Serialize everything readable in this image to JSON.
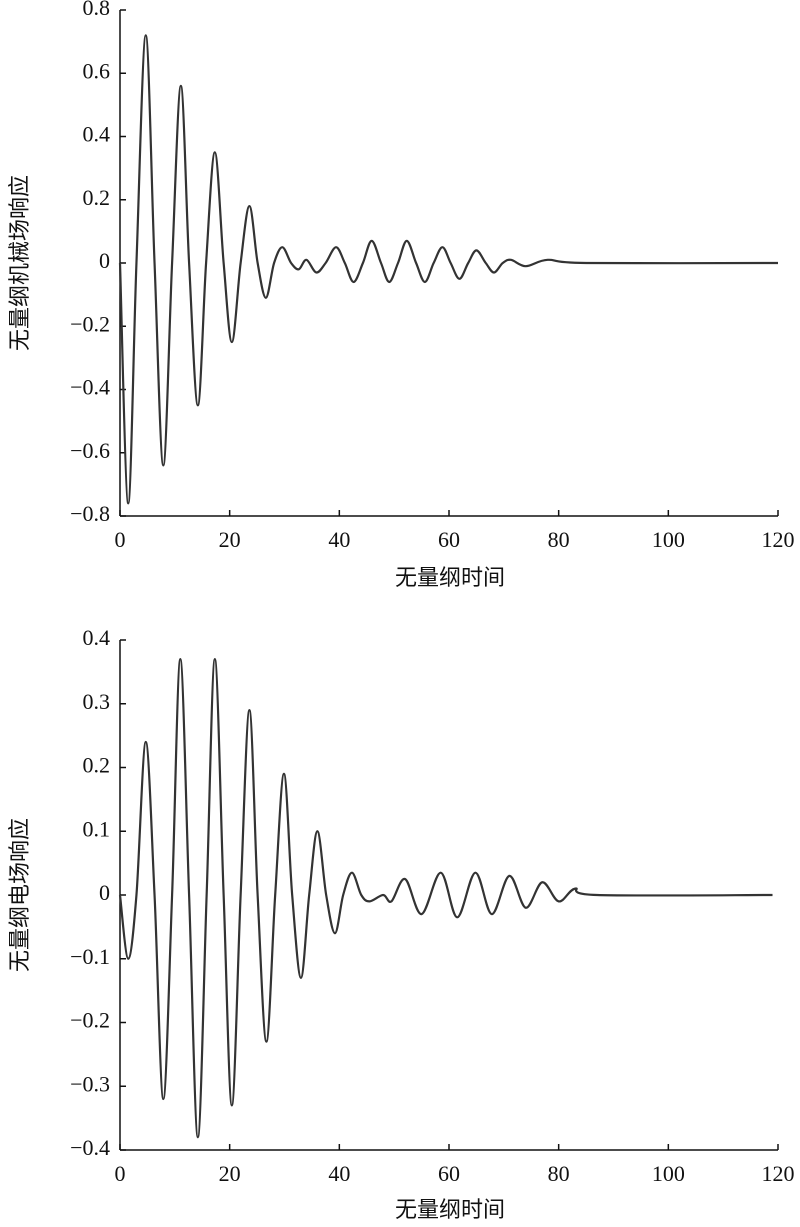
{
  "chart_data": [
    {
      "type": "line",
      "xlabel": "无量纲时间",
      "ylabel": "无量纲机械场响应",
      "color": "#333333",
      "xlim": [
        0,
        120
      ],
      "ylim": [
        -0.8,
        0.8
      ],
      "xticks": [
        0,
        20,
        40,
        60,
        80,
        100,
        120
      ],
      "yticks": [
        {
          "value": -0.8,
          "label": "−0.8"
        },
        {
          "value": -0.6,
          "label": "−0.6"
        },
        {
          "value": -0.4,
          "label": "−0.4"
        },
        {
          "value": -0.2,
          "label": "−0.2"
        },
        0,
        0.2,
        0.4,
        0.6,
        0.8
      ],
      "x": [
        0,
        1.5,
        3,
        4.7,
        6.3,
        7.9,
        9.5,
        11.1,
        12.6,
        14.2,
        15.7,
        17.3,
        18.9,
        20.4,
        22,
        23.6,
        25.1,
        26.6,
        28.1,
        29.6,
        31.2,
        32.6,
        34,
        35.8,
        37.5,
        39.4,
        41,
        42.6,
        44.3,
        45.9,
        47.6,
        49.1,
        50.7,
        52.3,
        54,
        55.6,
        57.2,
        58.8,
        60.3,
        61.9,
        63.5,
        65,
        66.7,
        68.2,
        69.8,
        71.3,
        74,
        78,
        85,
        120
      ],
      "values": [
        0,
        -0.76,
        0,
        0.72,
        0,
        -0.64,
        0,
        0.56,
        0,
        -0.45,
        0,
        0.35,
        0,
        -0.25,
        0,
        0.18,
        0,
        -0.11,
        0,
        0.05,
        0,
        -0.02,
        0.01,
        -0.03,
        0,
        0.05,
        0,
        -0.06,
        0,
        0.07,
        0,
        -0.06,
        0,
        0.07,
        0,
        -0.06,
        0,
        0.05,
        0,
        -0.05,
        0,
        0.04,
        0,
        -0.03,
        0,
        0.01,
        -0.01,
        0.01,
        0,
        0
      ]
    },
    {
      "type": "line",
      "xlabel": "无量纲时间",
      "ylabel": "无量纲电场响应",
      "color": "#333333",
      "xlim": [
        0,
        120
      ],
      "ylim": [
        -0.4,
        0.4
      ],
      "xticks": [
        0,
        20,
        40,
        60,
        80,
        100,
        120
      ],
      "yticks": [
        {
          "value": -0.4,
          "label": "−0.4"
        },
        {
          "value": -0.3,
          "label": "−0.3"
        },
        {
          "value": -0.2,
          "label": "−0.2"
        },
        {
          "value": -0.1,
          "label": "−0.1"
        },
        0,
        0.1,
        0.2,
        0.3,
        0.4
      ],
      "x": [
        0,
        1.5,
        3,
        4.7,
        6.3,
        7.9,
        9.5,
        11,
        12.6,
        14.2,
        15.8,
        17.3,
        18.9,
        20.4,
        22,
        23.6,
        25.1,
        26.7,
        28.3,
        29.9,
        31.4,
        33,
        34.5,
        36,
        37.6,
        39.2,
        40.7,
        42.3,
        44,
        45.5,
        48,
        49.5,
        52,
        55,
        58.5,
        61.5,
        64.8,
        67.8,
        71,
        74,
        77,
        80,
        83,
        87,
        119
      ],
      "values": [
        0,
        -0.1,
        0,
        0.24,
        0,
        -0.32,
        0,
        0.37,
        0,
        -0.38,
        0,
        0.37,
        0,
        -0.33,
        0,
        0.29,
        0,
        -0.23,
        0,
        0.19,
        0,
        -0.13,
        0,
        0.1,
        0,
        -0.06,
        0,
        0.035,
        0,
        -0.01,
        0,
        -0.01,
        0.025,
        -0.03,
        0.035,
        -0.035,
        0.035,
        -0.03,
        0.03,
        -0.02,
        0.02,
        -0.01,
        0.01,
        0,
        0
      ]
    }
  ]
}
